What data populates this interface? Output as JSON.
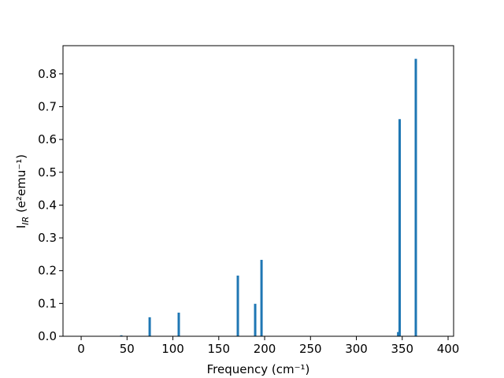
{
  "chart_data": {
    "type": "bar",
    "xlabel": "Frequency (cm⁻¹)",
    "ylabel": {
      "main": "I",
      "sub": "IR",
      "rest": " (e²emu⁻¹)"
    },
    "x": [
      43.8,
      74.7,
      106.4,
      170.8,
      189.7,
      196.6,
      345.6,
      347.2,
      364.8
    ],
    "values": [
      0.003,
      0.058,
      0.072,
      0.185,
      0.099,
      0.233,
      0.013,
      0.662,
      0.846
    ],
    "color": "#1f77b4",
    "xlim": [
      -19.8,
      406
    ],
    "ylim": [
      0,
      0.886
    ],
    "xticks": [
      0,
      50,
      100,
      150,
      200,
      250,
      300,
      350,
      400
    ],
    "yticks": [
      {
        "value": 0,
        "label": "0.0"
      },
      0.1,
      0.2,
      0.3,
      0.4,
      0.5,
      0.6,
      0.7,
      0.8
    ]
  }
}
